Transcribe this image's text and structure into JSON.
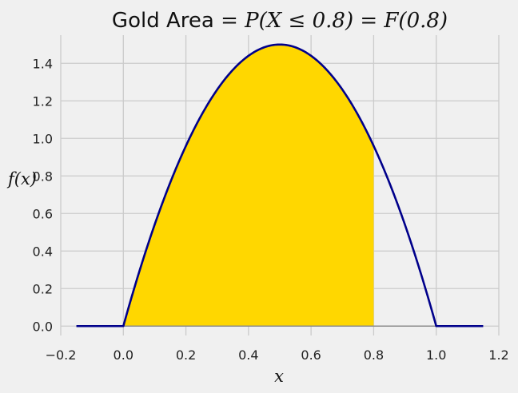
{
  "chart_data": {
    "type": "area",
    "title": "Gold Area = P(X ≤ 0.8) = F(0.8)",
    "title_plain": "Gold Area ",
    "title_math": "= P(X ≤ 0.8) = F(0.8)",
    "xlabel": "x",
    "ylabel": "f(x)",
    "xlim": [
      -0.2,
      1.2
    ],
    "ylim": [
      -0.05,
      1.55
    ],
    "x_ticks": [
      "−0.2",
      "0.0",
      "0.2",
      "0.4",
      "0.6",
      "0.8",
      "1.0",
      "1.2"
    ],
    "x_tick_values": [
      -0.2,
      0.0,
      0.2,
      0.4,
      0.6,
      0.8,
      1.0,
      1.2
    ],
    "y_ticks": [
      "0.0",
      "0.2",
      "0.4",
      "0.6",
      "0.8",
      "1.0",
      "1.2",
      "1.4"
    ],
    "y_tick_values": [
      0.0,
      0.2,
      0.4,
      0.6,
      0.8,
      1.0,
      1.2,
      1.4
    ],
    "grid": true,
    "function": "f(x) = 6x(1-x) for 0 ≤ x ≤ 1, else 0",
    "x_range": [
      -0.15,
      1.15
    ],
    "shaded_range": [
      0.0,
      0.8
    ],
    "curve_color": "#00008b",
    "fill_color": "#ffd700",
    "baseline_color": "#8c8c8c"
  }
}
